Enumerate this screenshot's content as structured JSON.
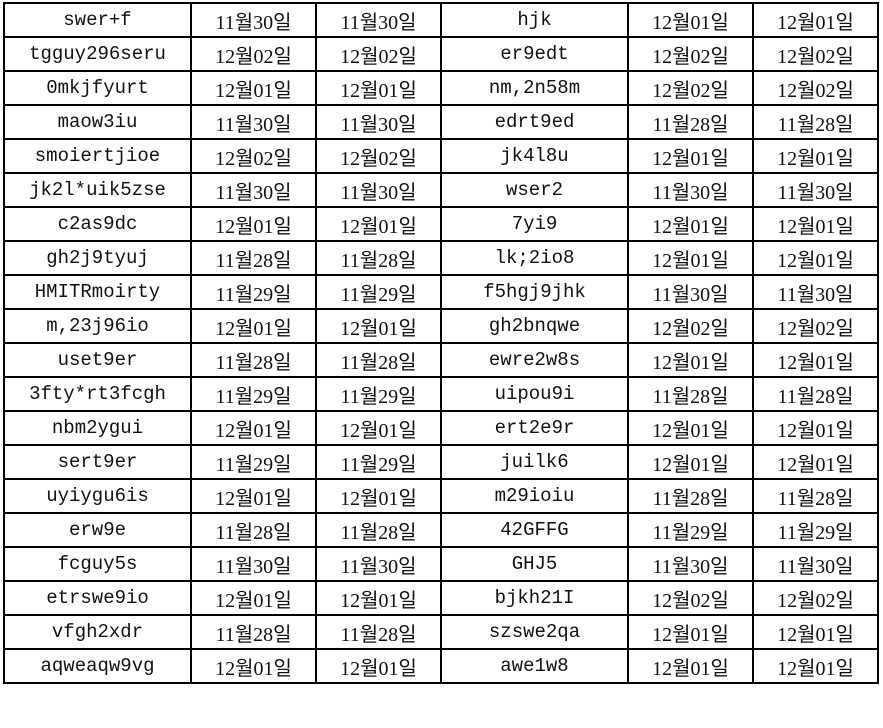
{
  "rows": [
    [
      "swer+f",
      "11월30일",
      "11월30일",
      "hjk",
      "12월01일",
      "12월01일"
    ],
    [
      "tgguy296seru",
      "12월02일",
      "12월02일",
      "er9edt",
      "12월02일",
      "12월02일"
    ],
    [
      "0mkjfyurt",
      "12월01일",
      "12월01일",
      "nm,2n58m",
      "12월02일",
      "12월02일"
    ],
    [
      "maow3iu",
      "11월30일",
      "11월30일",
      "edrt9ed",
      "11월28일",
      "11월28일"
    ],
    [
      "smoiertjioe",
      "12월02일",
      "12월02일",
      "jk4l8u",
      "12월01일",
      "12월01일"
    ],
    [
      "jk2l*uik5zse",
      "11월30일",
      "11월30일",
      "wser2",
      "11월30일",
      "11월30일"
    ],
    [
      "c2as9dc",
      "12월01일",
      "12월01일",
      "7yi9",
      "12월01일",
      "12월01일"
    ],
    [
      "gh2j9tyuj",
      "11월28일",
      "11월28일",
      "lk;2io8",
      "12월01일",
      "12월01일"
    ],
    [
      "HMITRmoirty",
      "11월29일",
      "11월29일",
      "f5hgj9jhk",
      "11월30일",
      "11월30일"
    ],
    [
      "m,23j96io",
      "12월01일",
      "12월01일",
      "gh2bnqwe",
      "12월02일",
      "12월02일"
    ],
    [
      "uset9er",
      "11월28일",
      "11월28일",
      "ewre2w8s",
      "12월01일",
      "12월01일"
    ],
    [
      "3fty*rt3fcgh",
      "11월29일",
      "11월29일",
      "uipou9i",
      "11월28일",
      "11월28일"
    ],
    [
      "nbm2ygui",
      "12월01일",
      "12월01일",
      "ert2e9r",
      "12월01일",
      "12월01일"
    ],
    [
      "sert9er",
      "11월29일",
      "11월29일",
      "juilk6",
      "12월01일",
      "12월01일"
    ],
    [
      "uyiygu6is",
      "12월01일",
      "12월01일",
      "m29ioiu",
      "11월28일",
      "11월28일"
    ],
    [
      "erw9e",
      "11월28일",
      "11월28일",
      "42GFFG",
      "11월29일",
      "11월29일"
    ],
    [
      "fcguy5s",
      "11월30일",
      "11월30일",
      "GHJ5",
      "11월30일",
      "11월30일"
    ],
    [
      "etrswe9io",
      "12월01일",
      "12월01일",
      "bjkh21I",
      "12월02일",
      "12월02일"
    ],
    [
      "vfgh2xdr",
      "11월28일",
      "11월28일",
      "szswe2qa",
      "12월01일",
      "12월01일"
    ],
    [
      "aqweaqw9vg",
      "12월01일",
      "12월01일",
      "awe1w8",
      "12월01일",
      "12월01일"
    ]
  ]
}
